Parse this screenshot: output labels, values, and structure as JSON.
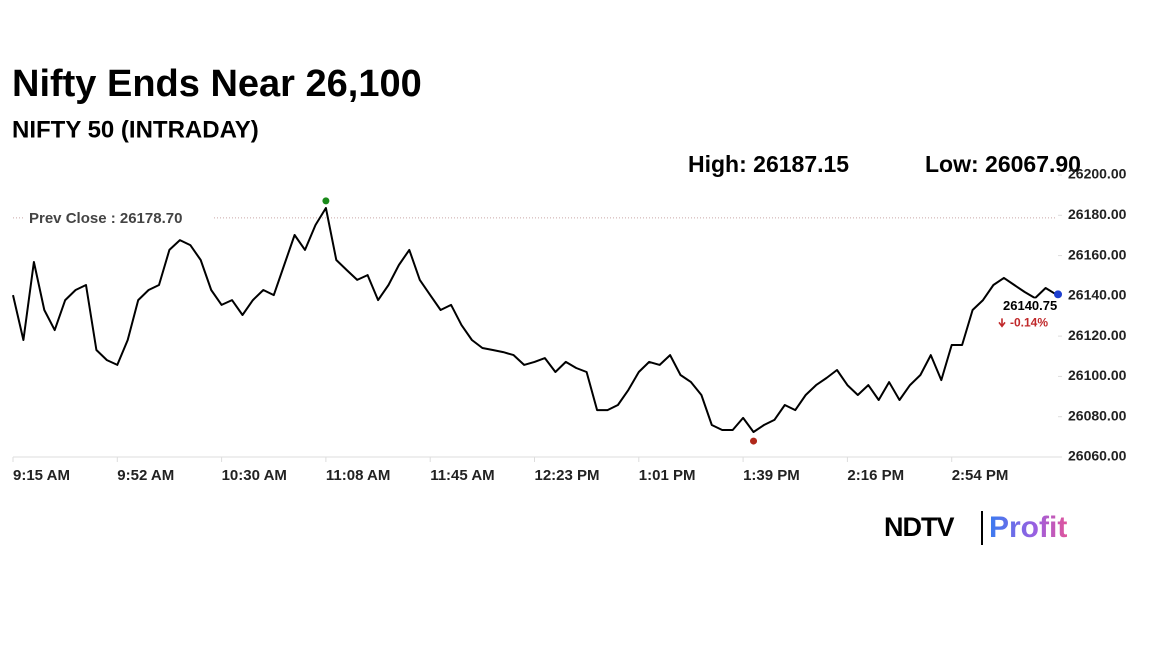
{
  "chart_data": {
    "type": "line",
    "title": "Nifty Ends Near 26,100",
    "subtitle": "NIFTY 50 (INTRADAY)",
    "high": 26187.15,
    "high_label": "High: 26187.15",
    "low": 26067.9,
    "low_label": "Low: 26067.90",
    "prev_close": 26178.7,
    "prev_close_label": "Prev Close : 26178.70",
    "last_value": 26140.75,
    "last_value_label": "26140.75",
    "change": -0.14,
    "change_label": "-0.14%",
    "categories": [
      "9:15 AM",
      null,
      null,
      null,
      null,
      null,
      null,
      null,
      null,
      null,
      "9:52 AM",
      null,
      null,
      null,
      null,
      null,
      null,
      null,
      null,
      null,
      "10:30 AM",
      null,
      null,
      null,
      null,
      null,
      null,
      null,
      null,
      null,
      "11:08 AM",
      null,
      null,
      null,
      null,
      null,
      null,
      null,
      null,
      null,
      "11:45 AM",
      null,
      null,
      null,
      null,
      null,
      null,
      null,
      null,
      null,
      "12:23 PM",
      null,
      null,
      null,
      null,
      null,
      null,
      null,
      null,
      null,
      "1:01 PM",
      null,
      null,
      null,
      null,
      null,
      null,
      null,
      null,
      null,
      "1:39 PM",
      null,
      null,
      null,
      null,
      null,
      null,
      null,
      null,
      null,
      "2:16 PM",
      null,
      null,
      null,
      null,
      null,
      null,
      null,
      null,
      null,
      "2:54 PM",
      null,
      null,
      null,
      null,
      null,
      null,
      null,
      null,
      null,
      null
    ],
    "series": [
      {
        "name": "NIFTY 50",
        "color": "#000000",
        "values": [
          26140.4,
          26118.1,
          26156.8,
          26133.0,
          26123.0,
          26137.9,
          26142.9,
          26145.4,
          26113.1,
          26108.1,
          26105.7,
          26118.1,
          26137.9,
          26142.9,
          26145.4,
          26162.8,
          26167.7,
          26165.2,
          26157.8,
          26142.9,
          26135.5,
          26137.9,
          26130.5,
          26137.9,
          26142.9,
          26140.4,
          26155.3,
          26170.2,
          26162.8,
          26175.2,
          26183.6,
          26157.8,
          26152.8,
          26147.9,
          26150.3,
          26137.9,
          26145.4,
          26155.3,
          26162.8,
          26147.9,
          26140.4,
          26133.0,
          26135.5,
          26125.5,
          26118.1,
          26114.1,
          26113.1,
          26112.1,
          26110.6,
          26105.7,
          26107.2,
          26109.1,
          26102.2,
          26107.2,
          26104.2,
          26102.2,
          26083.3,
          26083.3,
          26085.8,
          26093.3,
          26102.2,
          26107.2,
          26105.7,
          26110.6,
          26100.7,
          26097.2,
          26090.8,
          26075.9,
          26073.4,
          26073.4,
          26079.4,
          26072.4,
          26075.9,
          26078.4,
          26085.8,
          26083.3,
          26090.8,
          26095.7,
          26099.2,
          26103.2,
          26095.7,
          26090.8,
          26095.7,
          26088.3,
          26097.2,
          26088.3,
          26095.7,
          26100.7,
          26110.6,
          26098.2,
          26115.6,
          26115.6,
          26133.0,
          26137.9,
          26145.4,
          26148.9,
          26145.4,
          26141.9,
          26138.9,
          26143.9,
          26140.75
        ]
      }
    ],
    "ylim": [
      26060,
      26200
    ],
    "yticks": [
      {
        "value": 26200,
        "label": "26200.00"
      },
      {
        "value": 26180,
        "label": "26180.00"
      },
      {
        "value": 26160,
        "label": "26160.00"
      },
      {
        "value": 26140,
        "label": "26140.00"
      },
      {
        "value": 26120,
        "label": "26120.00"
      },
      {
        "value": 26100,
        "label": "26100.00"
      },
      {
        "value": 26080,
        "label": "26080.00"
      },
      {
        "value": 26060,
        "label": "26060.00"
      }
    ],
    "grid": false
  },
  "brand": {
    "name": "NDTV",
    "product": "Profit"
  }
}
